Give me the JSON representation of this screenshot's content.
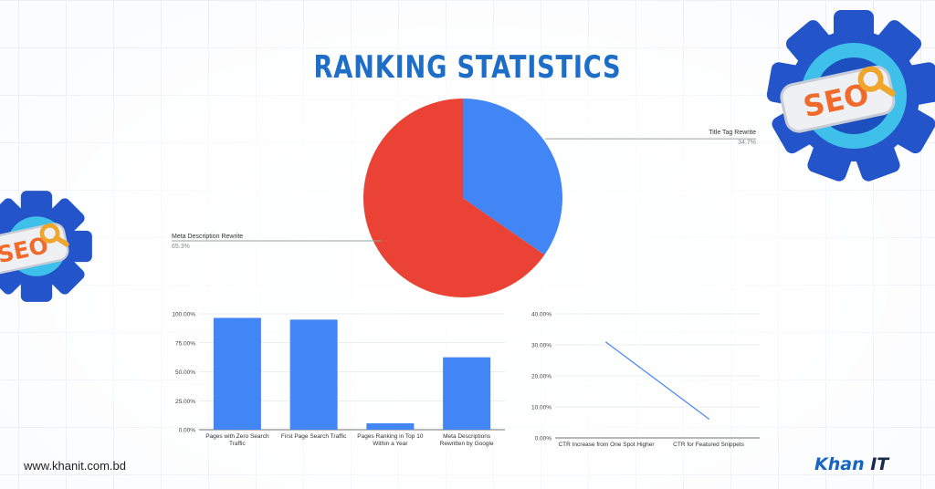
{
  "page": {
    "title": "RANKING STATISTICS",
    "footer_url": "www.khanit.com.bd",
    "logo_brand": "Khan",
    "logo_suffix": "IT",
    "badge_text": "SEO"
  },
  "colors": {
    "blue": "#4285f4",
    "red": "#ea4335",
    "title": "#1e6ec8",
    "gear_dark": "#2354c9",
    "gear_light": "#3ec0ea"
  },
  "chart_data": [
    {
      "type": "pie",
      "slices": [
        {
          "label": "Title Tag Rewrite",
          "value": 34.7,
          "display": "34.7%",
          "color": "#4285f4"
        },
        {
          "label": "Meta Description Rewrite",
          "value": 65.3,
          "display": "65.3%",
          "color": "#ea4335"
        }
      ]
    },
    {
      "type": "bar",
      "categories": [
        [
          "Pages with Zero Search",
          "Traffic"
        ],
        [
          "First Page Search Traffic"
        ],
        [
          "Pages Ranking in Top 10",
          "Within a Year"
        ],
        [
          "Meta Descriptions",
          "Rewritten by Google"
        ]
      ],
      "values": [
        96.5,
        95,
        5.5,
        62.5
      ],
      "ylim": [
        0,
        100
      ],
      "yticks": [
        "0.00%",
        "25.00%",
        "50.00%",
        "75.00%",
        "100.00%"
      ],
      "color": "#4285f4"
    },
    {
      "type": "line",
      "categories": [
        "CTR Increase from One Spot Higher",
        "CTR for Featured Snippets"
      ],
      "values": [
        30.8,
        6.2
      ],
      "ylim": [
        0,
        40
      ],
      "yticks": [
        "0.00%",
        "10.00%",
        "20.00%",
        "30.00%",
        "40.00%"
      ],
      "color": "#4285f4"
    }
  ]
}
